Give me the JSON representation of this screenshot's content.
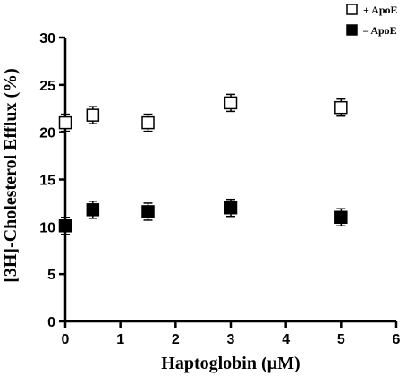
{
  "chart_data": {
    "type": "scatter",
    "title": "",
    "xlabel": "Haptoglobin (µM)",
    "ylabel": "[3H]-Cholesterol Efflux (%)",
    "xlim": [
      0,
      6
    ],
    "ylim": [
      0,
      30
    ],
    "xticks": [
      "0",
      "1",
      "2",
      "3",
      "4",
      "5",
      "6"
    ],
    "yticks": [
      "0",
      "5",
      "10",
      "15",
      "20",
      "25",
      "30"
    ],
    "grid": false,
    "legend_position": "top-right",
    "series": [
      {
        "name": "+ ApoE",
        "marker": "open-square",
        "color": "#000000",
        "x": [
          0,
          0.5,
          1.5,
          3,
          5
        ],
        "y": [
          21.0,
          21.8,
          21.0,
          23.1,
          22.6
        ],
        "err": [
          0.9,
          0.9,
          0.9,
          0.9,
          0.9
        ]
      },
      {
        "name": "– ApoE",
        "marker": "filled-square",
        "color": "#000000",
        "x": [
          0,
          0.5,
          1.5,
          3,
          5
        ],
        "y": [
          10.1,
          11.8,
          11.6,
          12.0,
          11.0
        ],
        "err": [
          0.9,
          0.9,
          0.9,
          0.9,
          0.9
        ]
      }
    ]
  }
}
